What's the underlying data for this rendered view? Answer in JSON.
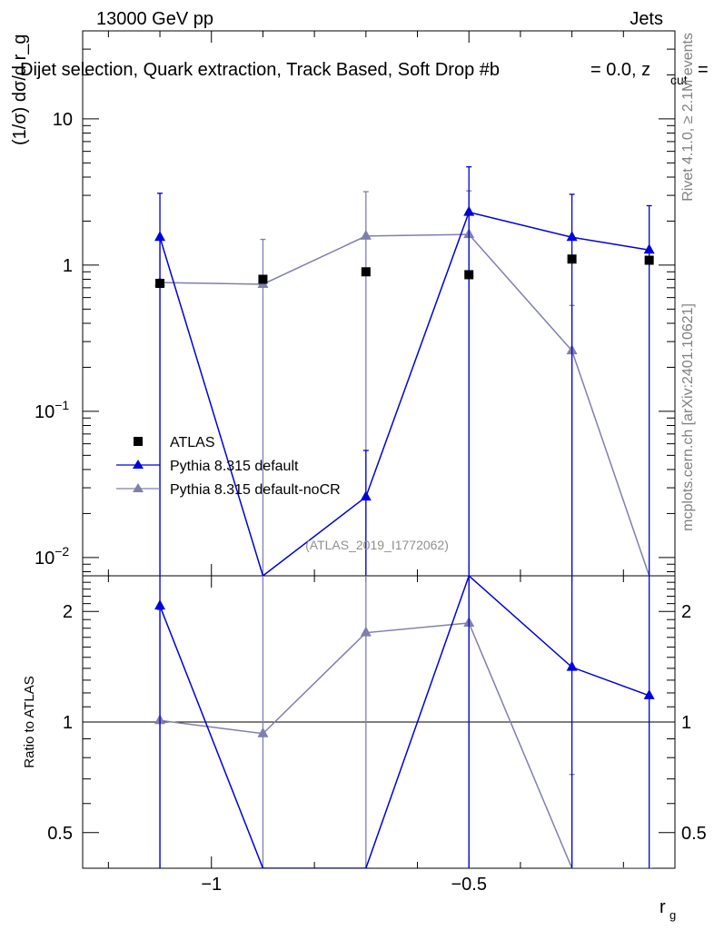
{
  "header": {
    "energy_label": "13000 GeV pp",
    "process_label": "Jets",
    "selection_label": "Dijet selection, Quark extraction, Track Based, Soft Drop #b",
    "param_label_a": "= 0.0, z",
    "param_label_b": "cut",
    "param_label_c": "="
  },
  "sidebar": {
    "rivet_label": "Rivet 4.1.0, ≥ 2.1M events",
    "mcplots_label": "mcplots.cern.ch [arXiv:2401.10621]"
  },
  "watermark": "(ATLAS_2019_I1772062)",
  "colors": {
    "data": "#000000",
    "pythia_default": "#0000dd",
    "pythia_nocr": "#7f7faf"
  },
  "chart_data": {
    "type": "scatter",
    "title": "",
    "xlabel": "r_g",
    "ylabel": "(1/σ) dσ/d r_g",
    "ratio_ylabel": "Ratio to ATLAS",
    "x": [
      -1.1,
      -0.9,
      -0.7,
      -0.5,
      -0.3,
      -0.15
    ],
    "xlim": [
      -1.25,
      -0.1
    ],
    "xticks": [
      -1,
      -0.5
    ],
    "xtick_labels": [
      "−1",
      "−0.5"
    ],
    "ylim": [
      0.0075,
      40
    ],
    "yscale": "log",
    "ytick_labels": [
      {
        "value": 10,
        "base": "10",
        "exp": ""
      },
      {
        "value": 1,
        "base": "1",
        "exp": ""
      },
      {
        "value": 0.1,
        "base": "10",
        "exp": "−1"
      },
      {
        "value": 0.01,
        "base": "10",
        "exp": "−2"
      }
    ],
    "ratio_ylim": [
      0.4,
      2.5
    ],
    "ratio_yticks": [
      0.5,
      1,
      2
    ],
    "ratio_ytick_labels": [
      "0.5",
      "1",
      "2"
    ],
    "legend_position": "bottom-left",
    "series": [
      {
        "name": "ATLAS",
        "marker": "square",
        "values": [
          0.75,
          0.8,
          0.9,
          0.86,
          1.1,
          1.08
        ],
        "err_low": [
          0.75,
          0.8,
          0.9,
          0.86,
          1.1,
          1.08
        ],
        "err_high": [
          0,
          0,
          0,
          0,
          0,
          0
        ]
      },
      {
        "name": "Pythia 8.315 default",
        "marker": "triangle",
        "line": true,
        "values": [
          1.55,
          0.0075,
          0.026,
          2.3,
          1.55,
          1.27
        ],
        "err_low": [
          1.55,
          0.0075,
          0.026,
          2.3,
          1.55,
          1.27
        ],
        "err_high": [
          1.55,
          0,
          0.028,
          2.4,
          1.5,
          1.28
        ],
        "ratio": [
          2.07,
          0.009,
          0.029,
          2.67,
          1.41,
          1.18
        ],
        "ratio_err_high": [
          2.07,
          0,
          0,
          2.67,
          2.8,
          2.3
        ]
      },
      {
        "name": "Pythia 8.315 default-noCR",
        "marker": "triangle",
        "line": true,
        "values": [
          0.76,
          0.74,
          1.58,
          1.62,
          0.26,
          0.0075
        ],
        "err_low": [
          0.76,
          0.74,
          1.58,
          1.62,
          0.26,
          0.0075
        ],
        "err_high": [
          0.75,
          0.76,
          1.6,
          1.6,
          0.27,
          0
        ],
        "ratio": [
          1.01,
          0.93,
          1.75,
          1.86,
          0.24,
          0.007
        ],
        "ratio_err_high": [
          1.01,
          1.82,
          2.5,
          2.5,
          0.48,
          0
        ]
      }
    ]
  }
}
